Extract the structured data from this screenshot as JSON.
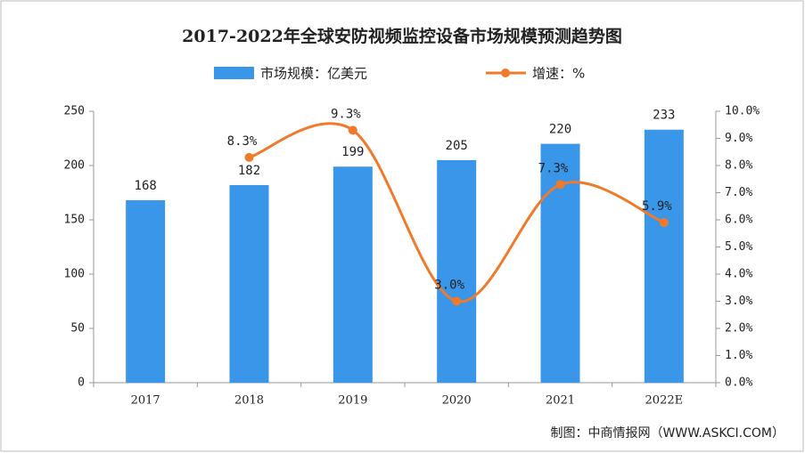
{
  "chart_data": {
    "type": "bar-line",
    "title": "2017-2022年全球安防视频监控设备市场规模预测趋势图",
    "categories": [
      "2017",
      "2018",
      "2019",
      "2020",
      "2021",
      "2022E"
    ],
    "series": [
      {
        "name": "市场规模：亿美元",
        "type": "bar",
        "color": "#3a96e8",
        "values": [
          168,
          182,
          199,
          205,
          220,
          233
        ]
      },
      {
        "name": "增速：%",
        "type": "line",
        "axis": "y2",
        "color": "#f07a2a",
        "values": [
          null,
          8.3,
          9.3,
          3.0,
          7.3,
          5.9
        ],
        "value_labels": [
          null,
          "8.3%",
          "9.3%",
          "3.0%",
          "7.3%",
          "5.9%"
        ]
      }
    ],
    "ylim": [
      0,
      250
    ],
    "yticks": [
      0,
      50,
      100,
      150,
      200,
      250
    ],
    "y2lim": [
      0,
      10
    ],
    "y2ticks": [
      {
        "value": 0,
        "label": "0.0%"
      },
      {
        "value": 1,
        "label": "1.0%"
      },
      {
        "value": 2,
        "label": "2.0%"
      },
      {
        "value": 3,
        "label": "3.0%"
      },
      {
        "value": 4,
        "label": "4.0%"
      },
      {
        "value": 5,
        "label": "5.0%"
      },
      {
        "value": 6,
        "label": "6.0%"
      },
      {
        "value": 7,
        "label": "7.0%"
      },
      {
        "value": 8,
        "label": "8.0%"
      },
      {
        "value": 9,
        "label": "9.0%"
      },
      {
        "value": 10,
        "label": "10.0%"
      }
    ],
    "legend": "top",
    "source": "制图：中商情报网（WWW.ASKCI.COM）"
  }
}
